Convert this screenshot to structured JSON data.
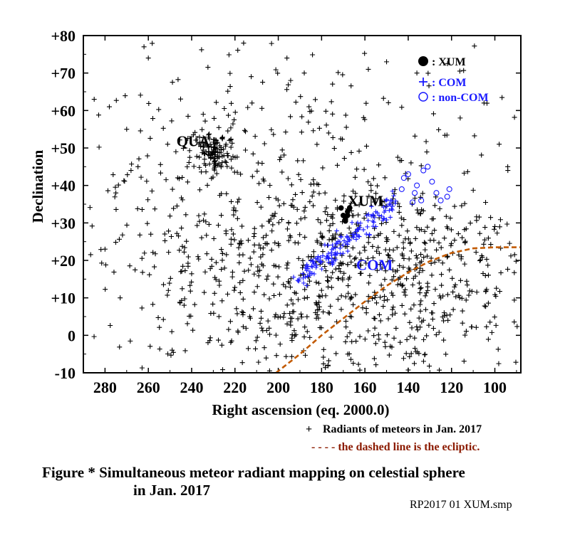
{
  "chart_data": {
    "type": "scatter",
    "xlabel": "Right ascension (eq. 2000.0)",
    "ylabel": "Declination",
    "xlim": [
      290,
      88
    ],
    "ylim": [
      -10,
      80
    ],
    "x_ticks": [
      "280",
      "260",
      "240",
      "220",
      "200",
      "180",
      "160",
      "140",
      "120",
      "100"
    ],
    "y_ticks": [
      "+80",
      "+70",
      "+60",
      "+50",
      "+40",
      "+30",
      "+20",
      "+10",
      "0",
      "-10"
    ],
    "grid": false,
    "legend_placement": "top-right",
    "legend": [
      {
        "symbol": "filled-circle",
        "label": ": XUM",
        "color": "#000000"
      },
      {
        "symbol": "plus",
        "label": ": COM",
        "color": "#1a1aff"
      },
      {
        "symbol": "open-circle",
        "label": ": non-COM",
        "color": "#1a1aff"
      }
    ],
    "annotations": [
      {
        "text": "QUA",
        "x": 247,
        "y": 52
      },
      {
        "text": "XUM",
        "x": 168,
        "y": 36
      },
      {
        "text": "COM",
        "x": 164,
        "y": 19
      }
    ],
    "ecliptic": {
      "style": "dashed",
      "color": "#c25a00",
      "points": [
        [
          201,
          -10
        ],
        [
          190,
          -5
        ],
        [
          180,
          0
        ],
        [
          170,
          4.5
        ],
        [
          160,
          9
        ],
        [
          150,
          13.2
        ],
        [
          140,
          16.8
        ],
        [
          130,
          19.8
        ],
        [
          120,
          22
        ],
        [
          110,
          23.2
        ],
        [
          100,
          23.5
        ],
        [
          88,
          23.5
        ]
      ]
    },
    "series": [
      {
        "name": "Radiants of meteors in Jan. 2017",
        "marker": "plus",
        "color": "#000000",
        "clusters": [
          {
            "x": 230,
            "y": 49,
            "sx": 4.5,
            "sy": 2.5,
            "n": 110
          },
          {
            "x": 180,
            "y": 15,
            "sx": 40,
            "sy": 14,
            "n": 520
          },
          {
            "x": 130,
            "y": 15,
            "sx": 28,
            "sy": 13,
            "n": 260
          },
          {
            "x": 210,
            "y": 38,
            "sx": 35,
            "sy": 16,
            "n": 200
          },
          {
            "x": 175,
            "y": 60,
            "sx": 50,
            "sy": 11,
            "n": 70
          },
          {
            "x": 255,
            "y": 20,
            "sx": 15,
            "sy": 18,
            "n": 60
          }
        ],
        "scattered_points": [
          [
            285,
            63
          ],
          [
            278,
            61
          ],
          [
            262,
            77
          ],
          [
            260,
            74
          ],
          [
            270,
            55
          ],
          [
            275,
            38
          ],
          [
            268,
            44
          ],
          [
            280,
            23
          ],
          [
            273,
            10
          ],
          [
            216,
            78
          ],
          [
            196,
            74
          ],
          [
            188,
            70
          ],
          [
            150,
            73
          ],
          [
            136,
            70
          ],
          [
            132,
            73
          ],
          [
            116,
            58
          ],
          [
            105,
            62
          ],
          [
            98,
            51
          ],
          [
            94,
            44
          ]
        ]
      },
      {
        "name": "XUM",
        "marker": "filled-circle",
        "color": "#000000",
        "points": [
          [
            170,
            32
          ],
          [
            169,
            31
          ],
          [
            168,
            33
          ],
          [
            167,
            34
          ],
          [
            171,
            34
          ],
          [
            169,
            30.5
          ],
          [
            168,
            32
          ]
        ]
      },
      {
        "name": "COM",
        "marker": "plus",
        "color": "#1a1aff",
        "trend": {
          "x0": 190,
          "y0": 15,
          "x1": 145,
          "y1": 36
        },
        "n": 150
      },
      {
        "name": "non-COM",
        "marker": "open-circle",
        "color": "#1a1aff",
        "points": [
          [
            142,
            42
          ],
          [
            140,
            43
          ],
          [
            136,
            40
          ],
          [
            133,
            44
          ],
          [
            131,
            45
          ],
          [
            129,
            41
          ],
          [
            127,
            38
          ],
          [
            125,
            36
          ],
          [
            122,
            37
          ],
          [
            121,
            39
          ],
          [
            137,
            38
          ],
          [
            134,
            36
          ],
          [
            138,
            35.5
          ],
          [
            143,
            39
          ]
        ]
      }
    ]
  },
  "legend_notes": {
    "radiants_label": "Radiants of meteors in Jan. 2017",
    "ecliptic_label": "- - - - the dashed line is the ecliptic."
  },
  "caption": {
    "line1": "Figure * Simultaneous meteor radiant mapping on celestial sphere",
    "line2": "in Jan. 2017"
  },
  "file_label": "RP2017 01 XUM.smp",
  "colors": {
    "black": "#000000",
    "blue": "#1a1aff",
    "ecliptic": "#c25a00",
    "ecliptic_note": "#8b1a00"
  }
}
